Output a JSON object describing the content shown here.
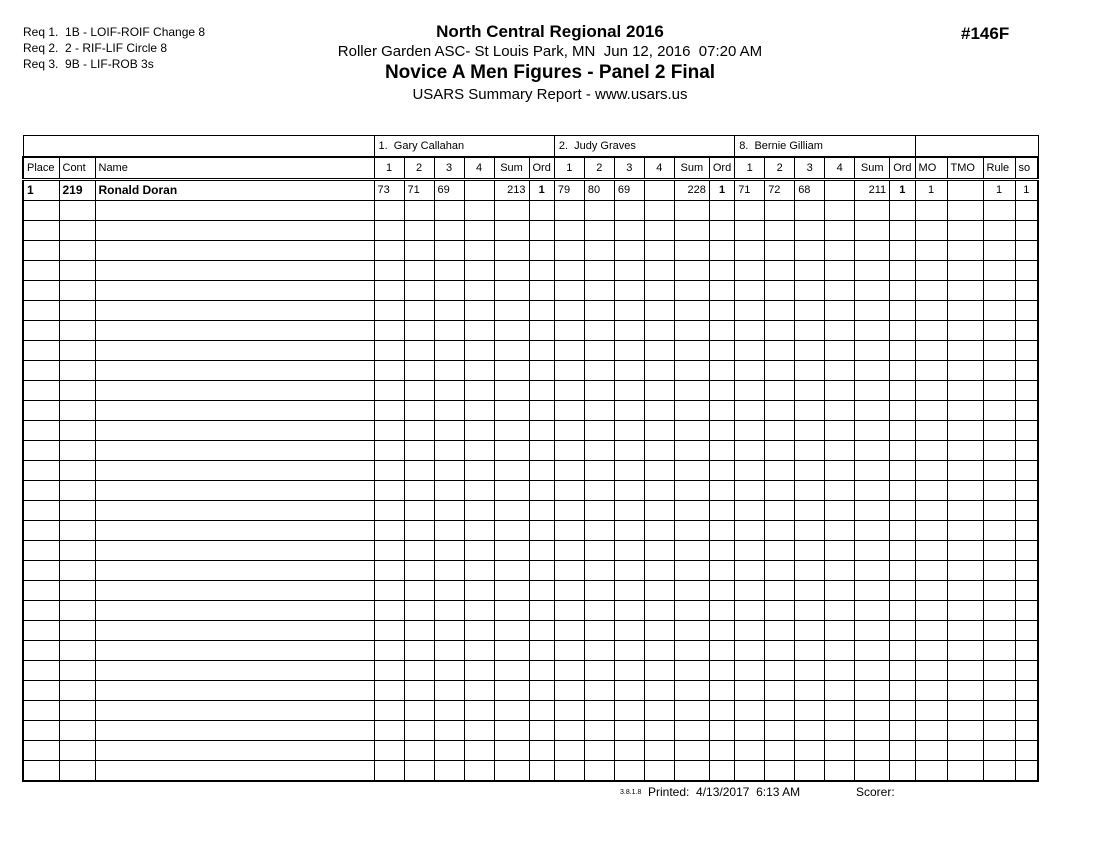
{
  "doc_number": "#146F",
  "requirements": {
    "lines": [
      "Req 1.  1B - LOIF-ROIF Change 8",
      "Req 2.  2 - RIF-LIF Circle 8",
      "Req 3.  9B - LIF-ROB 3s"
    ]
  },
  "header": {
    "title": "North Central Regional 2016",
    "venue_line": "Roller Garden ASC- St Louis Park, MN  Jun 12, 2016  07:20 AM",
    "event_title": "Novice A Men Figures - Panel 2 Final",
    "report_line": "USARS Summary Report - www.usars.us"
  },
  "table": {
    "judges": [
      {
        "label": "1.  Gary Callahan"
      },
      {
        "label": "2.  Judy Graves"
      },
      {
        "label": "8.  Bernie Gilliam"
      }
    ],
    "columns": {
      "place": "Place",
      "cont": "Cont",
      "name": "Name",
      "judge_sub": [
        "1",
        "2",
        "3",
        "4",
        "Sum",
        "Ord"
      ],
      "mo": "MO",
      "tmo": "TMO",
      "rule": "Rule",
      "so": "so"
    },
    "result_row": {
      "place": "1",
      "cont": "219",
      "name": "Ronald Doran",
      "judge_scores": [
        {
          "s1": "73",
          "s2": "71",
          "s3": "69",
          "s4": "",
          "sum": "213",
          "ord": "1"
        },
        {
          "s1": "79",
          "s2": "80",
          "s3": "69",
          "s4": "",
          "sum": "228",
          "ord": "1"
        },
        {
          "s1": "71",
          "s2": "72",
          "s3": "68",
          "s4": "",
          "sum": "211",
          "ord": "1"
        }
      ],
      "mo": "1",
      "tmo": "",
      "rule": "1",
      "so": "1"
    },
    "empty_row_count": 29
  },
  "footer": {
    "version": "3.8.1.8",
    "printed_label": "Printed:",
    "printed_value": "4/13/2017  6:13 AM",
    "scorer_label": "Scorer:"
  }
}
